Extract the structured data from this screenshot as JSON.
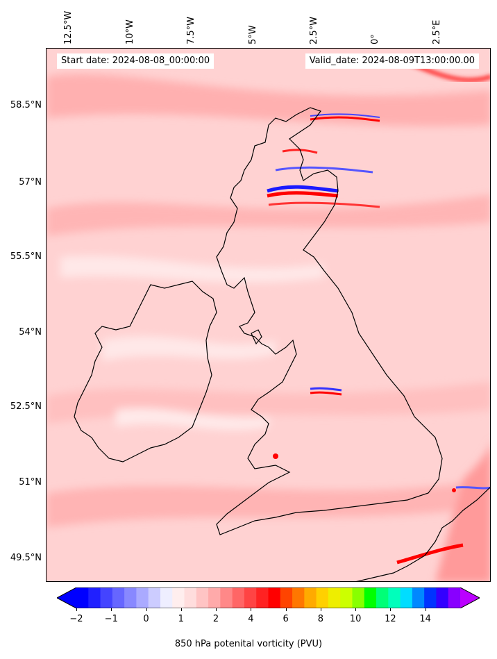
{
  "map": {
    "start_date": "Start date: 2024-08-08_00:00:00",
    "valid_date": "Valid_date: 2024-08-09T13:00:00.00",
    "longitude_labels": [
      "12.5°W",
      "10°W",
      "7.5°W",
      "5°W",
      "2.5°W",
      "0°",
      "2.5°E"
    ],
    "latitude_labels": [
      "58.5°N",
      "57°N",
      "55.5°N",
      "54°N",
      "52.5°N",
      "51°N",
      "49.5°N"
    ],
    "field": "850 hPa potential vorticity",
    "background_color": "#ffd6d6",
    "coastline_color": "#000000"
  },
  "colorbar": {
    "label": "850 hPa potenital vorticity (PVU)",
    "tick_labels": [
      "−2",
      "−1",
      "0",
      "1",
      "2",
      "4",
      "6",
      "8",
      "10",
      "12",
      "14"
    ],
    "colors": [
      "#0000ff",
      "#2020ff",
      "#4444ff",
      "#6666ff",
      "#8888ff",
      "#aaaaff",
      "#ccccff",
      "#eeeeff",
      "#ffeeee",
      "#ffdddd",
      "#ffc4c4",
      "#ffaaaa",
      "#ff8888",
      "#ff6666",
      "#ff4444",
      "#ff2222",
      "#ff0000",
      "#ff4400",
      "#ff7700",
      "#ffaa00",
      "#ffd000",
      "#eeee00",
      "#ccff00",
      "#88ff00",
      "#00ff00",
      "#00ff77",
      "#00ffbb",
      "#00ddff",
      "#0088ff",
      "#0033ff",
      "#3300ff",
      "#8800ff"
    ],
    "under_color": "#0000ff",
    "over_color": "#bb00ff"
  }
}
